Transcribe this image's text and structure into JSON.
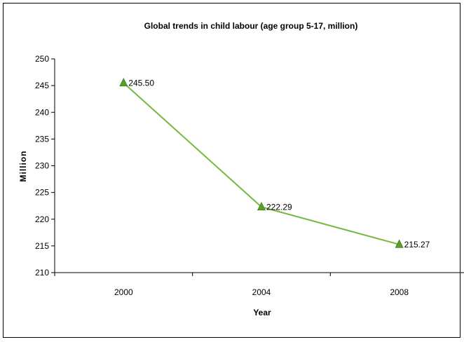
{
  "chart_data": {
    "type": "line",
    "title": "Global trends in child labour (age group 5-17, million)",
    "xlabel": "Year",
    "ylabel": "Million",
    "categories": [
      "2000",
      "2004",
      "2008"
    ],
    "series": [
      {
        "values": [
          245.5,
          222.29,
          215.27
        ],
        "data_labels": [
          "245.50",
          "222.29",
          "215.27"
        ],
        "color": "#77b93e",
        "marker": "triangle",
        "marker_color": "#5a9e2c"
      }
    ],
    "ylim": [
      210,
      250
    ],
    "yticks": [
      210,
      215,
      220,
      225,
      230,
      235,
      240,
      245,
      250
    ],
    "grid": false,
    "legend": "none"
  }
}
